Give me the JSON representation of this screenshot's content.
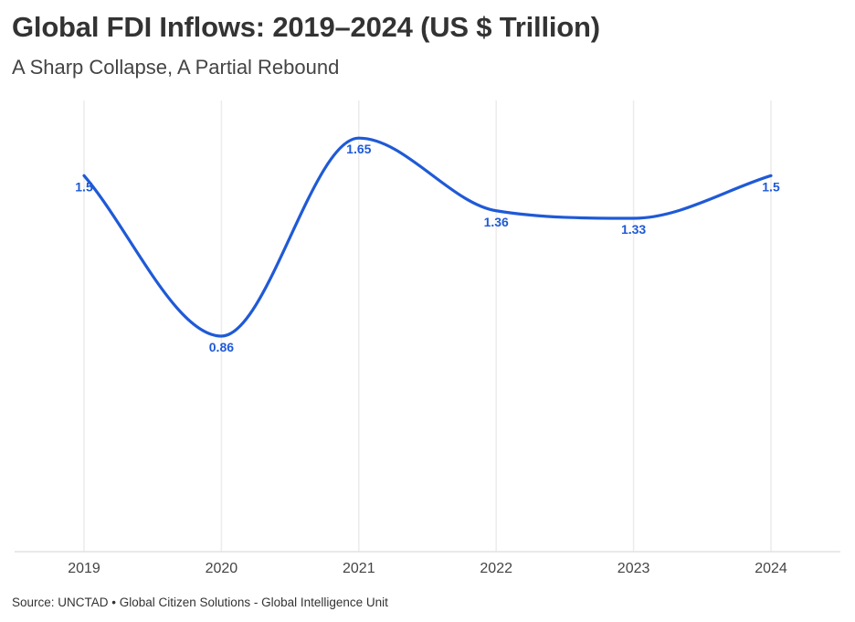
{
  "title": "Global FDI Inflows: 2019–2024 (US $ Trillion)",
  "subtitle": "A Sharp Collapse, A Partial Rebound",
  "source": "Source: UNCTAD • Global Citizen Solutions - Global Intelligence Unit",
  "chart_data": {
    "type": "line",
    "x": [
      "2019",
      "2020",
      "2021",
      "2022",
      "2023",
      "2024"
    ],
    "series": [
      {
        "values": [
          1.5,
          0.86,
          1.65,
          1.36,
          1.33,
          1.5
        ],
        "color": "#1f5ad6"
      }
    ],
    "data_labels": [
      "1.5",
      "0.86",
      "1.65",
      "1.36",
      "1.33",
      "1.5"
    ],
    "ylim": [
      0,
      1.8
    ],
    "y_axis_visible": false,
    "vertical_gridlines": true,
    "curve": "smooth",
    "xlabel": "",
    "ylabel": ""
  }
}
